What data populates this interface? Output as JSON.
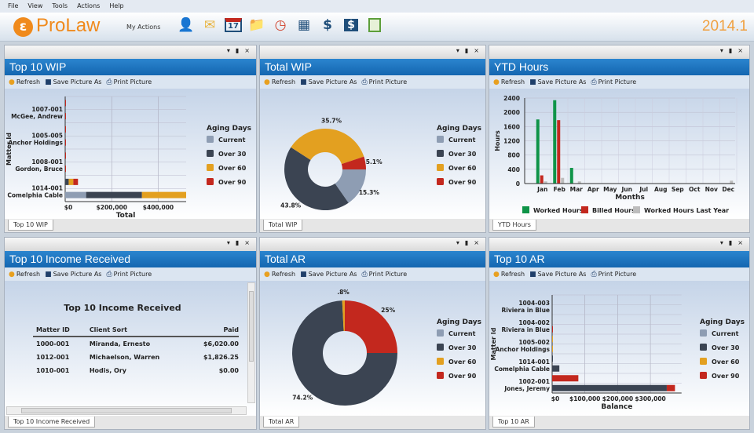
{
  "menu": [
    "File",
    "View",
    "Tools",
    "Actions",
    "Help"
  ],
  "header": {
    "logo_letter": "ε",
    "brand": "ProLaw",
    "my_actions": "My Actions",
    "version": "2014.1",
    "icons": [
      "contact-icon",
      "mail-folder-icon",
      "calendar-icon",
      "folder-icon",
      "clock-icon",
      "grid-icon",
      "receipt-icon",
      "billing-icon",
      "notebook-icon"
    ],
    "calendar_day": "17"
  },
  "panel_controls": {
    "dropdown": "▾",
    "pin": "📌",
    "close": "×"
  },
  "toolbar": {
    "refresh": "Refresh",
    "save": "Save Picture As",
    "print": "Print Picture"
  },
  "colors": {
    "Current": "#8e9db3",
    "Over 30": "#3b4452",
    "Over 60": "#e3a020",
    "Over 90": "#c3281e",
    "Worked Hours": "#0f9448",
    "Billed Hours": "#c3281e",
    "Worked Hours Last Year": "#bdbdbd",
    "title_bar": "#1a6fb8",
    "brand": "#f08a1c"
  },
  "panels": [
    {
      "title": "Top 10 WIP",
      "tab": "Top 10 WIP"
    },
    {
      "title": "Total WIP",
      "tab": "Total WIP"
    },
    {
      "title": "YTD Hours",
      "tab": "YTD Hours"
    },
    {
      "title": "Top 10 Income Received",
      "tab": "Top 10 Income Received"
    },
    {
      "title": "Total AR",
      "tab": "Total AR"
    },
    {
      "title": "Top 10 AR",
      "tab": "Top 10 AR"
    }
  ],
  "income": {
    "title": "Top 10 Income Received",
    "columns": [
      "Matter ID",
      "Client Sort",
      "Paid"
    ],
    "rows": [
      [
        "1000-001",
        "Miranda, Ernesto",
        "$6,020.00"
      ],
      [
        "1012-001",
        "Michaelson, Warren",
        "$1,826.25"
      ],
      [
        "1010-001",
        "Hodis, Ory",
        "$0.00"
      ]
    ]
  },
  "chart_data": [
    {
      "type": "bar",
      "orientation": "horizontal",
      "stacked": true,
      "xlabel": "Total",
      "ylabel": "Matter Id",
      "legend_title": "Aging Days",
      "legend": "right",
      "xticks": [
        "$0",
        "$200,000",
        "$400,000"
      ],
      "xtick_values": [
        0,
        200000,
        400000
      ],
      "xlim": [
        0,
        520000
      ],
      "categories": [
        "1014-001|Comelphia Cable",
        "",
        "1008-001|Gordon, Bruce",
        "",
        "1005-005|Anchor Holdings",
        "",
        "1007-001|McGee, Andrew",
        ""
      ],
      "series": [
        {
          "name": "Current",
          "values": [
            90000,
            0,
            0,
            0,
            0,
            0,
            0,
            0
          ]
        },
        {
          "name": "Over 30",
          "values": [
            240000,
            15000,
            0,
            0,
            0,
            0,
            0,
            0
          ]
        },
        {
          "name": "Over 60",
          "values": [
            190000,
            20000,
            0,
            0,
            0,
            0,
            0,
            0
          ]
        },
        {
          "name": "Over 90",
          "values": [
            0,
            20000,
            3000,
            1500,
            1000,
            1000,
            1000,
            500
          ]
        }
      ]
    },
    {
      "type": "pie",
      "donut": true,
      "legend_title": "Aging Days",
      "legend": "right",
      "labels": [
        "Current",
        "Over 30",
        "Over 60",
        "Over 90"
      ],
      "values": [
        15.3,
        43.8,
        35.7,
        5.1
      ],
      "data_labels": [
        "15.3%",
        "43.8%",
        "35.7%",
        "5.1%"
      ]
    },
    {
      "type": "bar",
      "orientation": "vertical",
      "xlabel": "Months",
      "ylabel": "Hours",
      "legend": "bottom",
      "ylim": [
        0,
        2400
      ],
      "yticks": [
        0,
        400,
        800,
        1200,
        1600,
        2000,
        2400
      ],
      "categories": [
        "Jan",
        "Feb",
        "Mar",
        "Apr",
        "May",
        "Jun",
        "Jul",
        "Aug",
        "Sep",
        "Oct",
        "Nov",
        "Dec"
      ],
      "series": [
        {
          "name": "Worked Hours",
          "values": [
            1800,
            2340,
            440,
            0,
            0,
            0,
            0,
            0,
            0,
            0,
            0,
            0
          ]
        },
        {
          "name": "Billed Hours",
          "values": [
            230,
            1780,
            0,
            0,
            0,
            0,
            0,
            0,
            0,
            0,
            0,
            0
          ]
        },
        {
          "name": "Worked Hours Last Year",
          "values": [
            60,
            160,
            60,
            0,
            0,
            0,
            0,
            0,
            0,
            0,
            0,
            80
          ]
        }
      ]
    },
    {
      "type": "pie",
      "donut": true,
      "legend_title": "Aging Days",
      "legend": "right",
      "labels": [
        "Current",
        "Over 30",
        "Over 60",
        "Over 90"
      ],
      "values": [
        0,
        74.2,
        0.8,
        25
      ],
      "data_labels": [
        "",
        "74.2%",
        ".8%",
        "25%"
      ]
    },
    {
      "type": "bar",
      "orientation": "horizontal",
      "stacked": true,
      "xlabel": "Balance",
      "ylabel": "Matter Id",
      "legend_title": "Aging Days",
      "legend": "right",
      "xticks": [
        "$0",
        "$100,000",
        "$200,000",
        "$300,000"
      ],
      "xtick_values": [
        0,
        100000,
        200000,
        300000
      ],
      "xlim": [
        0,
        395000
      ],
      "categories": [
        "1002-001|Jones, Jeremy",
        "",
        "1014-001|Comelphia Cable",
        "",
        "1005-002|Anchor Holdings",
        "",
        "1004-002|Riviera in Blue",
        "",
        "1004-003|Riviera in Blue",
        ""
      ],
      "series": [
        {
          "name": "Current",
          "values": [
            0,
            0,
            0,
            0,
            0,
            0,
            0,
            0,
            0,
            0
          ]
        },
        {
          "name": "Over 30",
          "values": [
            350000,
            0,
            22000,
            2000,
            0,
            0,
            0,
            0,
            0,
            0
          ]
        },
        {
          "name": "Over 60",
          "values": [
            0,
            0,
            0,
            0,
            1000,
            1000,
            0,
            0,
            0,
            0
          ]
        },
        {
          "name": "Over 90",
          "values": [
            25000,
            80000,
            0,
            0,
            0,
            0,
            1000,
            0,
            0,
            0
          ]
        }
      ]
    }
  ]
}
